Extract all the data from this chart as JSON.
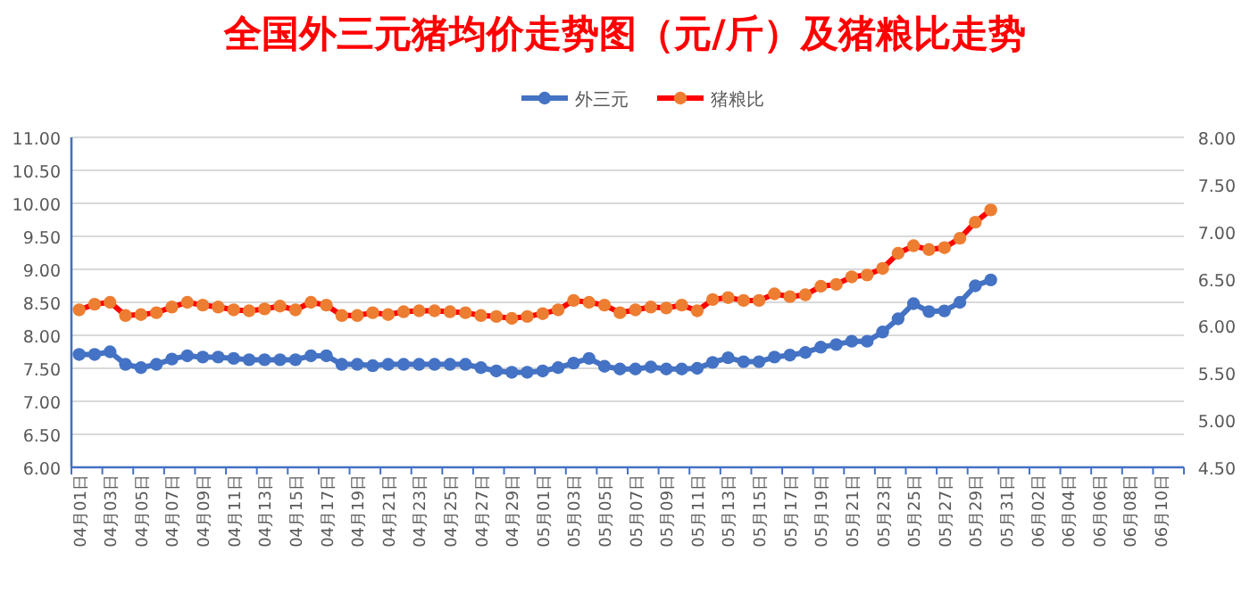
{
  "chart_data": {
    "type": "line",
    "title": "全国外三元猪均价走势图（元/斤）及猪粮比走势",
    "categories": [
      "04月01日",
      null,
      "04月03日",
      null,
      "04月05日",
      null,
      "04月07日",
      null,
      "04月09日",
      null,
      "04月11日",
      null,
      "04月13日",
      null,
      "04月15日",
      null,
      "04月17日",
      null,
      "04月19日",
      null,
      "04月21日",
      null,
      "04月23日",
      null,
      "04月25日",
      null,
      "04月27日",
      null,
      "04月29日",
      null,
      "05月01日",
      null,
      "05月03日",
      null,
      "05月05日",
      null,
      "05月07日",
      null,
      "05月09日",
      null,
      "05月11日",
      null,
      "05月13日",
      null,
      "05月15日",
      null,
      "05月17日",
      null,
      "05月19日",
      null,
      "05月21日",
      null,
      "05月23日",
      null,
      "05月25日",
      null,
      "05月27日",
      null,
      "05月29日",
      null,
      "05月31日",
      null,
      "06月02日",
      null,
      "06月04日",
      null,
      "06月06日",
      null,
      "06月08日",
      null,
      "06月10日",
      null
    ],
    "series": [
      {
        "name": "外三元",
        "color": "#4472c4",
        "axis": "y",
        "values": [
          7.71,
          7.71,
          7.75,
          7.56,
          7.51,
          7.56,
          7.64,
          7.69,
          7.67,
          7.67,
          7.65,
          7.63,
          7.63,
          7.63,
          7.63,
          7.69,
          7.69,
          7.56,
          7.56,
          7.54,
          7.56,
          7.56,
          7.56,
          7.56,
          7.56,
          7.56,
          7.51,
          7.46,
          7.44,
          7.44,
          7.46,
          7.51,
          7.58,
          7.65,
          7.53,
          7.49,
          7.49,
          7.52,
          7.49,
          7.49,
          7.5,
          7.59,
          7.66,
          7.6,
          7.6,
          7.67,
          7.7,
          7.74,
          7.82,
          7.86,
          7.91,
          7.91,
          8.05,
          8.25,
          8.48,
          8.36,
          8.37,
          8.5,
          8.75,
          8.84,
          null,
          null,
          null,
          null,
          null,
          null,
          null,
          null,
          null,
          null,
          null,
          null
        ]
      },
      {
        "name": "猪粮比",
        "color": "#ff0000",
        "colors": [
          "#ed7d31",
          "#ed7d31",
          "#ed7d31",
          "#ed7d31",
          "#ed7d31",
          "#ed7d31",
          "#ed7d31",
          "#ed7d31",
          "#ed7d31",
          "#ed7d31",
          "#ed7d31",
          "#ed7d31",
          "#ed7d31",
          "#ed7d31",
          "#ed7d31",
          "#ed7d31",
          "#ed7d31",
          "#ed7d31",
          "#ed7d31",
          "#ed7d31",
          "#ed7d31",
          "#ed7d31",
          "#ed7d31",
          "#ed7d31",
          "#ed7d31",
          "#ed7d31",
          "#ed7d31",
          "#ed7d31",
          "#ed7d31",
          "#ed7d31",
          "#ed7d31",
          "#ed7d31",
          "#ed7d31",
          "#ed7d31",
          "#ed7d31",
          "#ed7d31",
          "#ed7d31",
          "#ed7d31",
          "#ed7d31",
          "#ed7d31",
          "#ed7d31",
          "#ed7d31",
          "#ed7d31",
          "#ed7d31",
          "#ed7d31",
          "#ed7d31",
          "#ed7d31",
          "#ed7d31",
          "#ed7d31",
          "#ed7d31",
          "#ed7d31",
          "#ed7d31",
          "#ed7d31",
          "#ed7d31",
          "#ed7d31",
          "#ed7d31",
          "#ed7d31",
          "#ed7d31",
          "#ed7d31",
          "#ed7d31",
          null,
          null,
          null,
          null,
          null,
          null,
          null,
          null,
          null,
          null,
          null,
          null
        ],
        "axis": "y2",
        "values": [
          6.17,
          6.23,
          6.25,
          6.11,
          6.12,
          6.14,
          6.2,
          6.25,
          6.22,
          6.2,
          6.17,
          6.16,
          6.18,
          6.21,
          6.17,
          6.25,
          6.22,
          6.11,
          6.11,
          6.14,
          6.12,
          6.15,
          6.16,
          6.16,
          6.15,
          6.14,
          6.11,
          6.1,
          6.08,
          6.1,
          6.13,
          6.17,
          6.27,
          6.25,
          6.22,
          6.14,
          6.17,
          6.2,
          6.19,
          6.22,
          6.16,
          6.28,
          6.3,
          6.27,
          6.27,
          6.34,
          6.31,
          6.33,
          6.42,
          6.44,
          6.52,
          6.54,
          6.61,
          6.77,
          6.85,
          6.81,
          6.83,
          6.93,
          7.1,
          7.23,
          null,
          null,
          null,
          null,
          null,
          null,
          null,
          null,
          null,
          null,
          null,
          null
        ]
      }
    ],
    "ylim": [
      6,
      11
    ],
    "yticks": [
      {
        "value": 6,
        "label": "6.00"
      },
      {
        "value": 6.5,
        "label": "6.50"
      },
      {
        "value": 7,
        "label": "7.00"
      },
      {
        "value": 7.5,
        "label": "7.50"
      },
      {
        "value": 8,
        "label": "8.00"
      },
      {
        "value": 8.5,
        "label": "8.50"
      },
      {
        "value": 9,
        "label": "9.00"
      },
      {
        "value": 9.5,
        "label": "9.50"
      },
      {
        "value": 10,
        "label": "10.00"
      },
      {
        "value": 10.5,
        "label": "10.50"
      },
      {
        "value": 11,
        "label": "11.00"
      }
    ],
    "y2lim": [
      4.5,
      8
    ],
    "y2ticks": [
      {
        "value": 4.5,
        "label": "4.50"
      },
      {
        "value": 5,
        "label": "5.00"
      },
      {
        "value": 5.5,
        "label": "5.50"
      },
      {
        "value": 6,
        "label": "6.00"
      },
      {
        "value": 6.5,
        "label": "6.50"
      },
      {
        "value": 7,
        "label": "7.00"
      },
      {
        "value": 7.5,
        "label": "7.50"
      },
      {
        "value": 8,
        "label": "8.00"
      }
    ],
    "grid": "y",
    "legend": "top",
    "marker": "circle",
    "line_style": "solid"
  }
}
